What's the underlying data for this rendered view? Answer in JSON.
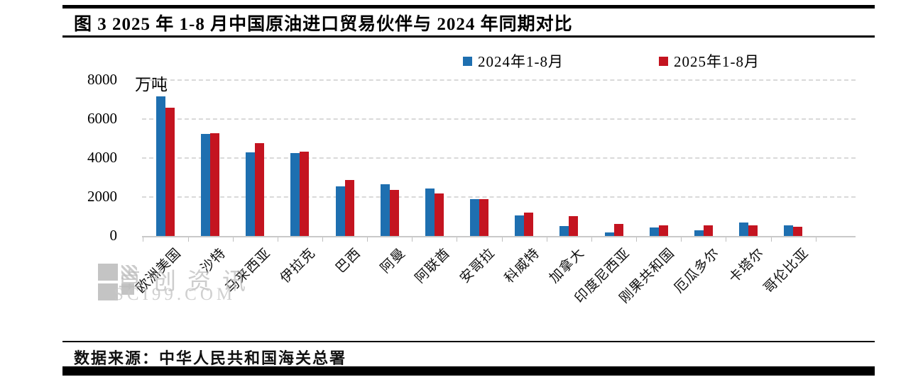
{
  "figure": {
    "title": "图 3  2025 年 1-8 月中国原油进口贸易伙伴与 2024 年同期对比",
    "source_line": "数据来源：中华人民共和国海关总署",
    "watermark": {
      "brand": "卓创资讯",
      "site": "SCI99.COM"
    }
  },
  "legend": {
    "items": [
      {
        "label": "2024年1-8月",
        "color": "#1e6fb0"
      },
      {
        "label": "2025年1-8月",
        "color": "#c41420"
      }
    ]
  },
  "chart_data": {
    "type": "bar",
    "title": "2025年1-8月中国原油进口贸易伙伴与2024年同期对比",
    "ylabel": "万吨",
    "xlabel": "",
    "ylim": [
      0,
      8000
    ],
    "yticks": [
      0,
      2000,
      4000,
      6000,
      8000
    ],
    "grid": "horizontal-dashed",
    "legend_position": "top",
    "categories": [
      "欧洲美国",
      "沙特",
      "马来西亚",
      "伊拉克",
      "巴西",
      "阿曼",
      "阿联酋",
      "安哥拉",
      "科威特",
      "加拿大",
      "印度尼西亚",
      "刚果共和国",
      "厄瓜多尔",
      "卡塔尔",
      "哥伦比亚"
    ],
    "series": [
      {
        "name": "2024年1-8月",
        "color": "#1e6fb0",
        "values": [
          7150,
          5250,
          4300,
          4250,
          2550,
          2670,
          2450,
          1880,
          1050,
          500,
          180,
          430,
          300,
          680,
          550
        ]
      },
      {
        "name": "2025年1-8月",
        "color": "#c41420",
        "values": [
          6570,
          5270,
          4750,
          4320,
          2870,
          2380,
          2180,
          1880,
          1200,
          1000,
          620,
          550,
          550,
          560,
          480
        ]
      }
    ]
  }
}
